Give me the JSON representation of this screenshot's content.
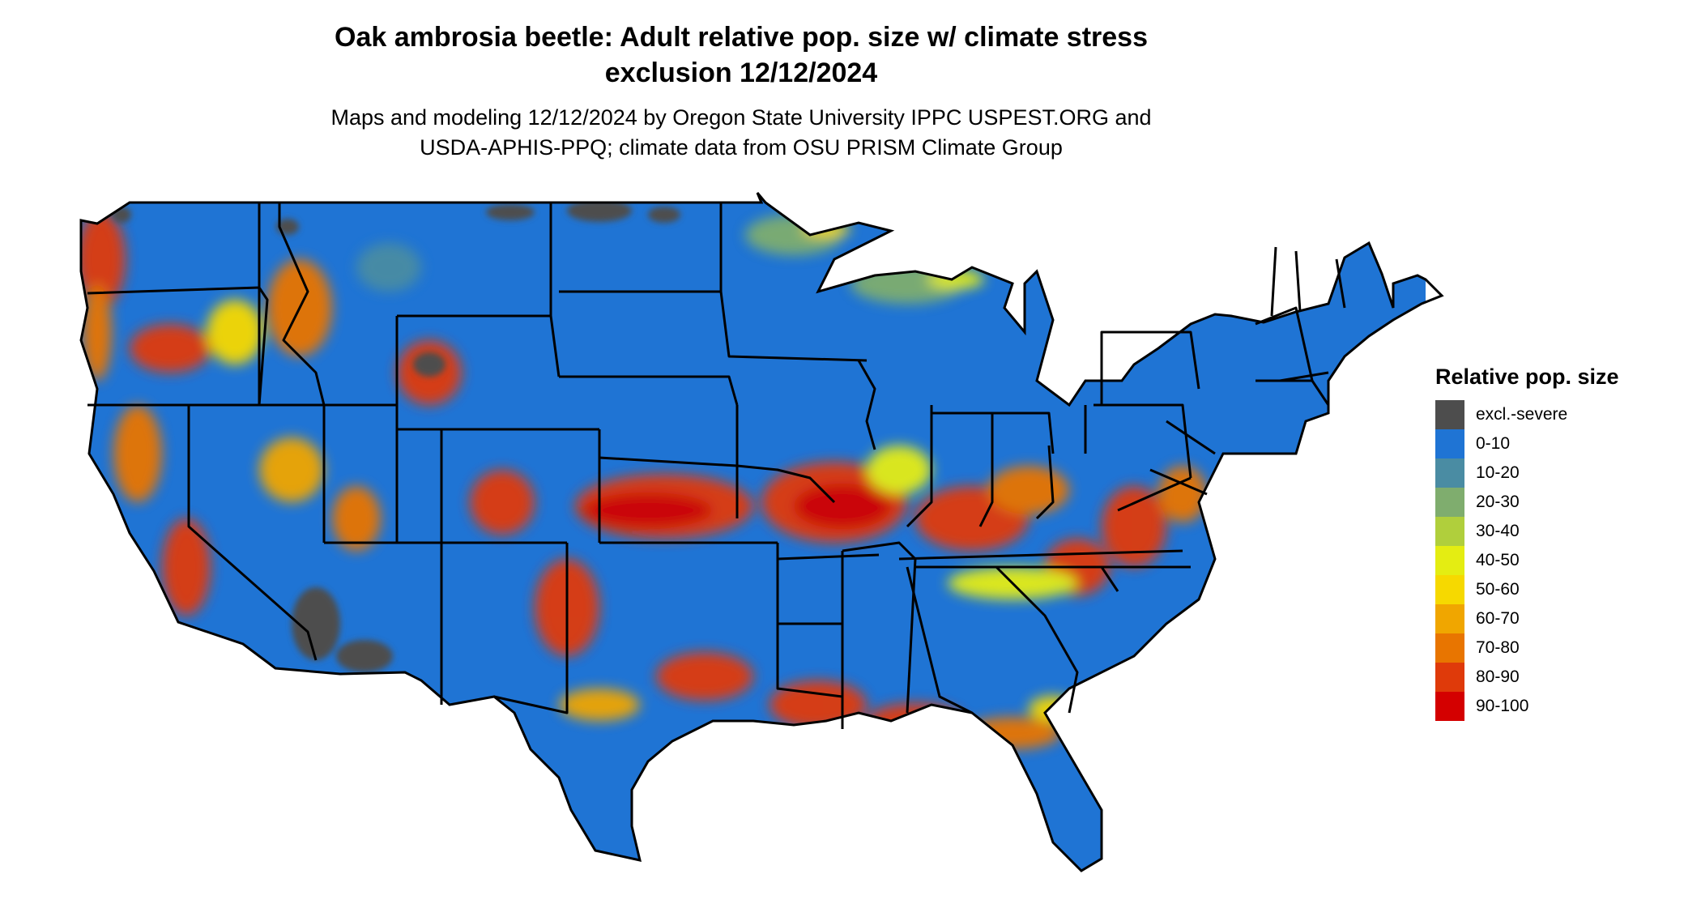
{
  "title_line1": "Oak ambrosia beetle: Adult relative pop. size w/ climate stress",
  "title_line2": "exclusion 12/12/2024",
  "subtitle_line1": "Maps and modeling 12/12/2024 by Oregon State University IPPC USPEST.ORG and",
  "subtitle_line2": "USDA-APHIS-PPQ; climate data from OSU PRISM Climate Group",
  "legend": {
    "title": "Relative pop. size",
    "items": [
      {
        "label": "excl.-severe",
        "color": "#4d4d4d"
      },
      {
        "label": "0-10",
        "color": "#1f74d4"
      },
      {
        "label": "10-20",
        "color": "#4a8ca3"
      },
      {
        "label": "20-30",
        "color": "#7fad6e"
      },
      {
        "label": "30-40",
        "color": "#b0cf3c"
      },
      {
        "label": "40-50",
        "color": "#e4ed12"
      },
      {
        "label": "50-60",
        "color": "#f6d900"
      },
      {
        "label": "60-70",
        "color": "#f0a600"
      },
      {
        "label": "70-80",
        "color": "#e87500"
      },
      {
        "label": "80-90",
        "color": "#df3a0a"
      },
      {
        "label": "90-100",
        "color": "#d40000"
      }
    ]
  }
}
